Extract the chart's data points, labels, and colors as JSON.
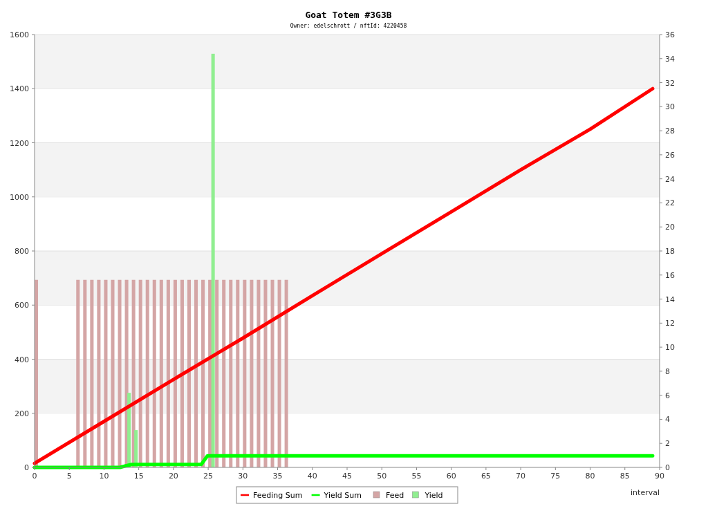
{
  "chart_data": {
    "type": "line",
    "title": "Goat Totem #3G3B",
    "subtitle": "Owner: edelschrott / nftId: 4220458",
    "xlabel": "interval",
    "xlim": [
      0,
      90
    ],
    "xticks": [
      0,
      5,
      10,
      15,
      20,
      25,
      30,
      35,
      40,
      45,
      50,
      55,
      60,
      65,
      70,
      75,
      80,
      85,
      90
    ],
    "ylim": [
      0,
      1600
    ],
    "yticks": [
      0,
      200,
      400,
      600,
      800,
      1000,
      1200,
      1400,
      1600
    ],
    "y2lim": [
      0,
      36
    ],
    "y2ticks": [
      0,
      2,
      4,
      6,
      8,
      10,
      12,
      14,
      16,
      18,
      20,
      22,
      24,
      26,
      28,
      30,
      32,
      34,
      36
    ],
    "grid": "y",
    "legend": "bottom",
    "series": [
      {
        "name": "Feed",
        "type": "bar",
        "axis": "y2",
        "color": "#d4a5a5",
        "x": [
          0.25,
          6.25,
          7.25,
          8.25,
          9.25,
          10.25,
          11.25,
          12.25,
          13.25,
          14.25,
          15.25,
          16.25,
          17.25,
          18.25,
          19.25,
          20.25,
          21.25,
          22.25,
          23.25,
          24.25,
          25.25,
          26.25,
          27.25,
          28.25,
          29.25,
          30.25,
          31.25,
          32.25,
          33.25,
          34.25,
          35.25,
          36.25
        ],
        "values": [
          15.6,
          15.6,
          15.6,
          15.6,
          15.6,
          15.6,
          15.6,
          15.6,
          15.6,
          15.6,
          15.6,
          15.6,
          15.6,
          15.6,
          15.6,
          15.6,
          15.6,
          15.6,
          15.6,
          15.6,
          15.6,
          15.6,
          15.6,
          15.6,
          15.6,
          15.6,
          15.6,
          15.6,
          15.6,
          15.6,
          15.6,
          15.6
        ]
      },
      {
        "name": "Yield",
        "type": "bar",
        "axis": "y2",
        "color": "#90ee90",
        "x": [
          13.6,
          14.6,
          25.7
        ],
        "values": [
          6.2,
          3.1,
          34.4
        ]
      },
      {
        "name": "Feeding Sum",
        "color": "#ff0000",
        "x": [
          0,
          10,
          20,
          30,
          40,
          50,
          60,
          70,
          80,
          89
        ],
        "values": [
          15,
          170,
          325,
          478,
          635,
          790,
          945,
          1100,
          1250,
          1400
        ]
      },
      {
        "name": "Yield Sum",
        "color": "#00ff00",
        "x": [
          0,
          12.3,
          13,
          14,
          24,
          24.9,
          89
        ],
        "values": [
          0,
          0,
          5,
          11,
          11,
          43,
          43
        ]
      }
    ]
  }
}
